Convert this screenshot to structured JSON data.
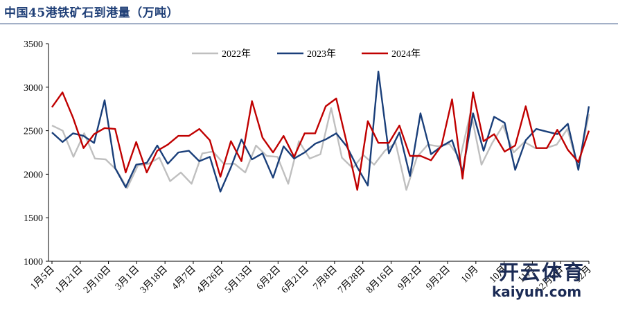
{
  "chart_data": {
    "type": "line",
    "title": "中国45港铁矿石到港量（万吨）",
    "ylim": [
      1000,
      3500
    ],
    "yticks": [
      1000,
      1500,
      2000,
      2500,
      3000,
      3500
    ],
    "legend_position": "top-center",
    "grid": false,
    "x_tick_labels": [
      "1月5日",
      "1月21日",
      "2月10日",
      "3月1日",
      "3月18日",
      "4月7日",
      "4月26日",
      "5月13日",
      "6月2日",
      "6月21日",
      "7月8日",
      "7月28日",
      "8月16日",
      "9月2日",
      "9月2日",
      "10月",
      "10月",
      "11月",
      "12月6日",
      "12月"
    ],
    "series": [
      {
        "name": "2022年",
        "color": "#bfbfbf",
        "values": [
          2560,
          2500,
          2200,
          2470,
          2180,
          2170,
          2050,
          1840,
          2100,
          2120,
          2190,
          1920,
          2020,
          1890,
          2240,
          2260,
          2120,
          2120,
          2020,
          2330,
          2210,
          2200,
          1890,
          2380,
          2180,
          2230,
          2760,
          2190,
          2070,
          2220,
          2110,
          2270,
          2360,
          1820,
          2200,
          2340,
          2320,
          2350,
          2180,
          2720,
          2110,
          2360,
          2560,
          2250,
          2370,
          2300,
          2300,
          2340,
          2520,
          2070,
          2690
        ]
      },
      {
        "name": "2023年",
        "color": "#1a3f7a",
        "values": [
          2480,
          2370,
          2470,
          2440,
          2360,
          2850,
          2070,
          1850,
          2110,
          2130,
          2330,
          2120,
          2250,
          2270,
          2150,
          2200,
          1800,
          2080,
          2400,
          2170,
          2240,
          1960,
          2320,
          2180,
          2250,
          2350,
          2400,
          2470,
          2320,
          2080,
          1870,
          3180,
          2240,
          2480,
          1980,
          2700,
          2230,
          2320,
          2390,
          2030,
          2700,
          2270,
          2660,
          2590,
          2050,
          2390,
          2520,
          2490,
          2460,
          2580,
          2050,
          2780
        ]
      },
      {
        "name": "2024年",
        "color": "#c00000",
        "values": [
          2770,
          2940,
          2650,
          2300,
          2460,
          2530,
          2520,
          2020,
          2370,
          2020,
          2270,
          2340,
          2440,
          2440,
          2520,
          2390,
          1970,
          2380,
          2150,
          2840,
          2420,
          2250,
          2440,
          2200,
          2470,
          2470,
          2780,
          2870,
          2360,
          1820,
          2610,
          2360,
          2360,
          2560,
          2210,
          2210,
          2160,
          2330,
          2860,
          1950,
          2940,
          2380,
          2460,
          2260,
          2330,
          2780,
          2300,
          2300,
          2510,
          2280,
          2140,
          2500
        ]
      }
    ]
  }
}
